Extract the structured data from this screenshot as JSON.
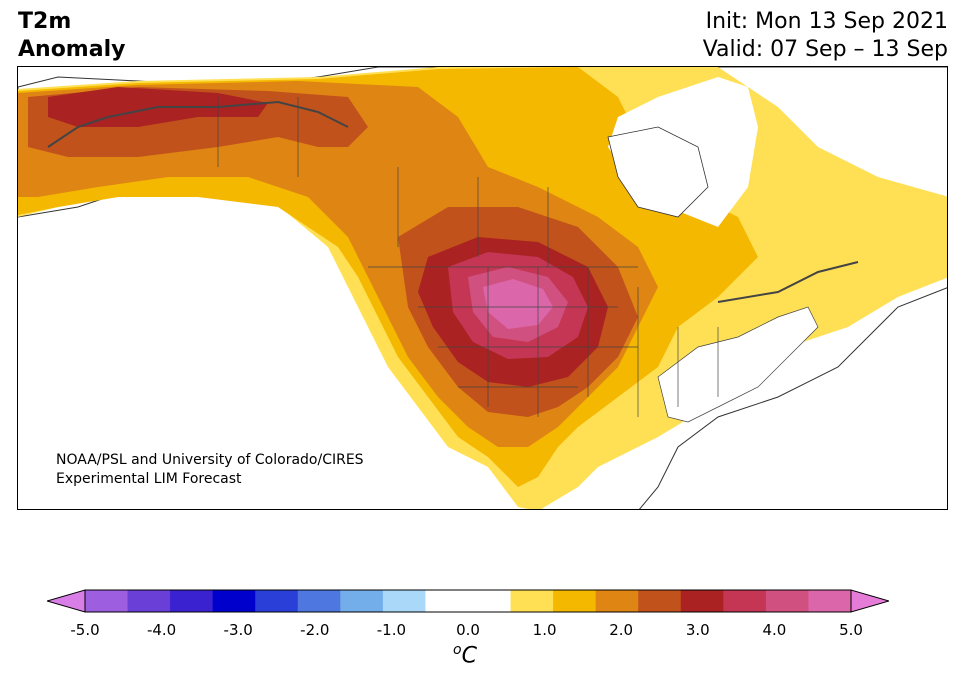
{
  "header": {
    "title_line1": "T2m",
    "title_line2": "Anomaly",
    "init": "Init: Mon 13 Sep 2021",
    "valid": "Valid: 07 Sep – 13 Sep"
  },
  "map": {
    "region": "North America",
    "credit_line1": "NOAA/PSL and University of Colorado/CIRES",
    "credit_line2": "Experimental LIM Forecast"
  },
  "colorbar": {
    "unit_prefix": "o",
    "unit_main": "C",
    "ticks": [
      "-5.0",
      "-4.0",
      "-3.0",
      "-2.0",
      "-1.0",
      "0.0",
      "1.0",
      "2.0",
      "3.0",
      "4.0",
      "5.0"
    ],
    "colors": [
      "#d97ee6",
      "#9d5ee0",
      "#6a3fd8",
      "#3a22d0",
      "#0000cc",
      "#2a3fd8",
      "#4e78e0",
      "#74aeea",
      "#aad8f8",
      "#ffffff",
      "#ffffff",
      "#ffe055",
      "#f5b800",
      "#de8513",
      "#c2521b",
      "#aa2222",
      "#c43654",
      "#d05180",
      "#db66aa",
      "#e57cd8"
    ],
    "min": -5.0,
    "max": 5.0,
    "step": 0.5
  }
}
